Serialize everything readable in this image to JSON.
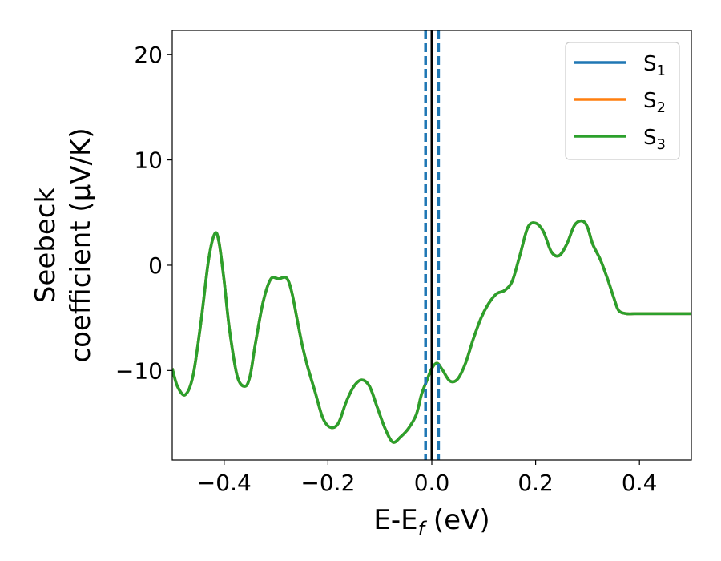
{
  "chart_data": {
    "type": "line",
    "xlabel": {
      "main": "E-E",
      "sub": "f",
      "suffix": " (eV)"
    },
    "ylabel": {
      "line1": "Seebeck",
      "line2": "coefficient  (μV/K)"
    },
    "xlim": [
      -0.5,
      0.5
    ],
    "ylim": [
      -18.5,
      22.3
    ],
    "xticks": [
      {
        "value": -0.4,
        "label": "−0.4"
      },
      {
        "value": -0.2,
        "label": "−0.2"
      },
      {
        "value": 0.0,
        "label": "0.0"
      },
      {
        "value": 0.2,
        "label": "0.2"
      },
      {
        "value": 0.4,
        "label": "0.4"
      }
    ],
    "yticks": [
      {
        "value": -10,
        "label": "−10"
      },
      {
        "value": 0,
        "label": "0"
      },
      {
        "value": 10,
        "label": "10"
      },
      {
        "value": 20,
        "label": "20"
      }
    ],
    "grid": false,
    "legend_position": "top-right",
    "x": [
      -0.5,
      -0.49,
      -0.475,
      -0.46,
      -0.445,
      -0.43,
      -0.418,
      -0.41,
      -0.4,
      -0.39,
      -0.375,
      -0.36,
      -0.35,
      -0.34,
      -0.325,
      -0.31,
      -0.295,
      -0.28,
      -0.27,
      -0.26,
      -0.25,
      -0.24,
      -0.225,
      -0.21,
      -0.195,
      -0.18,
      -0.165,
      -0.15,
      -0.135,
      -0.12,
      -0.105,
      -0.09,
      -0.075,
      -0.06,
      -0.045,
      -0.03,
      -0.02,
      -0.01,
      0.0,
      0.01,
      0.02,
      0.035,
      0.05,
      0.065,
      0.08,
      0.095,
      0.11,
      0.125,
      0.14,
      0.155,
      0.17,
      0.185,
      0.2,
      0.215,
      0.23,
      0.245,
      0.26,
      0.275,
      0.29,
      0.3,
      0.31,
      0.325,
      0.34,
      0.35,
      0.36,
      0.375,
      0.39,
      0.4,
      0.41,
      0.425,
      0.44,
      0.455,
      0.47,
      0.485,
      0.5
    ],
    "series": [
      {
        "name": "S",
        "sub": "1",
        "color": "#1f77b4",
        "values": [
          -9.8,
          -11.5,
          -12.3,
          -10.5,
          -5.5,
          0.5,
          3.0,
          2.2,
          -1.5,
          -6.0,
          -10.5,
          -11.5,
          -10.5,
          -7.5,
          -3.5,
          -1.3,
          -1.3,
          -1.2,
          -2.5,
          -5.0,
          -7.5,
          -9.5,
          -12.0,
          -14.5,
          -15.4,
          -15.0,
          -13.0,
          -11.5,
          -10.9,
          -11.5,
          -13.5,
          -15.5,
          -16.8,
          -16.3,
          -15.5,
          -14.2,
          -12.3,
          -11.0,
          -9.8,
          -9.3,
          -9.9,
          -11.0,
          -10.8,
          -9.3,
          -7.0,
          -5.0,
          -3.6,
          -2.7,
          -2.4,
          -1.5,
          1.0,
          3.6,
          4.0,
          3.2,
          1.3,
          0.9,
          2.0,
          3.8,
          4.2,
          3.6,
          2.0,
          0.5,
          -1.5,
          -3.0,
          -4.3,
          -4.6,
          -4.6,
          -4.6,
          -4.6,
          -4.6,
          -4.6,
          -4.6,
          -4.6,
          -4.6,
          -4.6
        ]
      },
      {
        "name": "S",
        "sub": "2",
        "color": "#ff7f0e",
        "values": [
          -9.8,
          -11.5,
          -12.3,
          -10.5,
          -5.5,
          0.5,
          3.0,
          2.2,
          -1.5,
          -6.0,
          -10.5,
          -11.5,
          -10.5,
          -7.5,
          -3.5,
          -1.3,
          -1.3,
          -1.2,
          -2.5,
          -5.0,
          -7.5,
          -9.5,
          -12.0,
          -14.5,
          -15.4,
          -15.0,
          -13.0,
          -11.5,
          -10.9,
          -11.5,
          -13.5,
          -15.5,
          -16.8,
          -16.3,
          -15.5,
          -14.2,
          -12.3,
          -11.0,
          -9.8,
          -9.3,
          -9.9,
          -11.0,
          -10.8,
          -9.3,
          -7.0,
          -5.0,
          -3.6,
          -2.7,
          -2.4,
          -1.5,
          1.0,
          3.6,
          4.0,
          3.2,
          1.3,
          0.9,
          2.0,
          3.8,
          4.2,
          3.6,
          2.0,
          0.5,
          -1.5,
          -3.0,
          -4.3,
          -4.6,
          -4.6,
          -4.6,
          -4.6,
          -4.6,
          -4.6,
          -4.6,
          -4.6,
          -4.6,
          -4.6
        ]
      },
      {
        "name": "S",
        "sub": "3",
        "color": "#2ca02c",
        "values": [
          -9.8,
          -11.5,
          -12.3,
          -10.5,
          -5.5,
          0.5,
          3.0,
          2.2,
          -1.5,
          -6.0,
          -10.5,
          -11.5,
          -10.5,
          -7.5,
          -3.5,
          -1.3,
          -1.3,
          -1.2,
          -2.5,
          -5.0,
          -7.5,
          -9.5,
          -12.0,
          -14.5,
          -15.4,
          -15.0,
          -13.0,
          -11.5,
          -10.9,
          -11.5,
          -13.5,
          -15.5,
          -16.8,
          -16.3,
          -15.5,
          -14.2,
          -12.3,
          -11.0,
          -9.8,
          -9.3,
          -9.9,
          -11.0,
          -10.8,
          -9.3,
          -7.0,
          -5.0,
          -3.6,
          -2.7,
          -2.4,
          -1.5,
          1.0,
          3.6,
          4.0,
          3.2,
          1.3,
          0.9,
          2.0,
          3.8,
          4.2,
          3.6,
          2.0,
          0.5,
          -1.5,
          -3.0,
          -4.3,
          -4.6,
          -4.6,
          -4.6,
          -4.6,
          -4.6,
          -4.6,
          -4.6,
          -4.6,
          -4.6,
          -4.6
        ]
      }
    ],
    "vlines": [
      {
        "x": 0.0,
        "color": "#000000",
        "style": "solid"
      },
      {
        "x": -0.012,
        "color": "#1f77b4",
        "style": "dashed"
      },
      {
        "x": 0.013,
        "color": "#1f77b4",
        "style": "dashed"
      }
    ]
  }
}
